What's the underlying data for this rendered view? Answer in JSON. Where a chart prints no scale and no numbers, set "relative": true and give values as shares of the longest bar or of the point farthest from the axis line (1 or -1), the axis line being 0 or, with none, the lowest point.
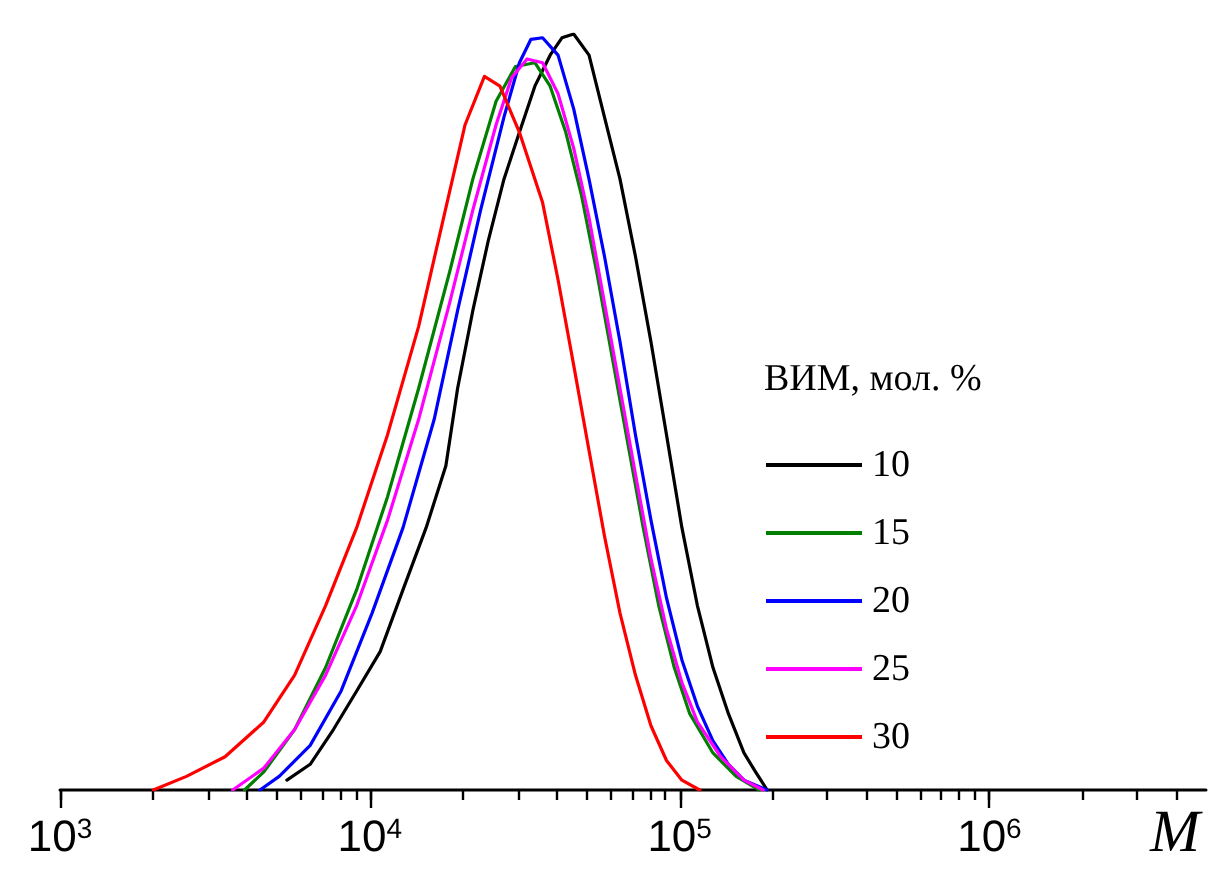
{
  "chart_data": {
    "type": "line",
    "relative": true,
    "xlabel": "M",
    "legend_title": "ВИМ, мол. %",
    "legend": "right",
    "log": "x",
    "grid": false,
    "marker": "none",
    "line_style": "solid",
    "xlim": [
      1000,
      5000000
    ],
    "xticks": [
      {
        "value": 1000,
        "label": "10$^{3}$"
      },
      {
        "value": 2000,
        "label": null
      },
      {
        "value": 3000,
        "label": null
      },
      {
        "value": 4000,
        "label": null
      },
      {
        "value": 5000,
        "label": null
      },
      {
        "value": 6000,
        "label": null
      },
      {
        "value": 7000,
        "label": null
      },
      {
        "value": 8000,
        "label": null
      },
      {
        "value": 9000,
        "label": null
      },
      {
        "value": 10000,
        "label": "10$^{4}$"
      },
      {
        "value": 20000,
        "label": null
      },
      {
        "value": 30000,
        "label": null
      },
      {
        "value": 40000,
        "label": null
      },
      {
        "value": 50000,
        "label": null
      },
      {
        "value": 60000,
        "label": null
      },
      {
        "value": 70000,
        "label": null
      },
      {
        "value": 80000,
        "label": null
      },
      {
        "value": 90000,
        "label": null
      },
      {
        "value": 100000,
        "label": "10$^{5}$"
      },
      {
        "value": 200000,
        "label": null
      },
      {
        "value": 300000,
        "label": null
      },
      {
        "value": 400000,
        "label": null
      },
      {
        "value": 500000,
        "label": null
      },
      {
        "value": 600000,
        "label": null
      },
      {
        "value": 700000,
        "label": null
      },
      {
        "value": 800000,
        "label": null
      },
      {
        "value": 900000,
        "label": null
      },
      {
        "value": 1000000,
        "label": "10$^{6}$"
      },
      {
        "value": 2000000,
        "label": null
      },
      {
        "value": 3000000,
        "label": null
      },
      {
        "value": 4000000,
        "label": null
      }
    ],
    "series": [
      {
        "name": "10",
        "color": "#000000",
        "x": [
          5400,
          6420,
          7630,
          9070,
          10800,
          12800,
          15200,
          17600,
          19200,
          21500,
          24100,
          27100,
          30400,
          34100,
          38200,
          41700,
          45500,
          51000,
          57200,
          64200,
          72000,
          80800,
          90700,
          101700,
          114100,
          128100,
          143700,
          161300,
          175800,
          191700
        ],
        "values": [
          0.013,
          0.034,
          0.08,
          0.131,
          0.183,
          0.265,
          0.347,
          0.429,
          0.531,
          0.634,
          0.726,
          0.808,
          0.87,
          0.931,
          0.972,
          0.995,
          1,
          0.972,
          0.89,
          0.808,
          0.706,
          0.593,
          0.47,
          0.347,
          0.244,
          0.162,
          0.101,
          0.049,
          0.024,
          0
        ]
      },
      {
        "name": "15",
        "color": "#007f00",
        "x": [
          3940,
          4550,
          5720,
          7200,
          9070,
          11410,
          14370,
          18090,
          21500,
          25560,
          29510,
          34100,
          38200,
          42910,
          48140,
          54010,
          60600,
          68000,
          76300,
          85600,
          96100,
          107800,
          128100,
          152200,
          180900
        ],
        "values": [
          0,
          0.024,
          0.08,
          0.162,
          0.265,
          0.388,
          0.531,
          0.685,
          0.808,
          0.911,
          0.957,
          0.962,
          0.931,
          0.87,
          0.788,
          0.685,
          0.572,
          0.459,
          0.347,
          0.244,
          0.162,
          0.101,
          0.049,
          0.018,
          0
        ]
      },
      {
        "name": "20",
        "color": "#0000ff",
        "x": [
          4420,
          5100,
          6420,
          8080,
          10170,
          12800,
          16130,
          19200,
          22780,
          27100,
          30400,
          33110,
          36110,
          40510,
          45500,
          51000,
          57200,
          64200,
          72000,
          80800,
          90700,
          101700,
          114100,
          128100,
          143700,
          161300,
          191700
        ],
        "values": [
          0,
          0.018,
          0.059,
          0.131,
          0.234,
          0.347,
          0.49,
          0.634,
          0.767,
          0.89,
          0.962,
          0.993,
          0.995,
          0.972,
          0.901,
          0.808,
          0.706,
          0.593,
          0.47,
          0.357,
          0.254,
          0.172,
          0.111,
          0.065,
          0.034,
          0.013,
          0
        ]
      },
      {
        "name": "25",
        "color": "#ff00ff",
        "x": [
          3610,
          4550,
          5720,
          7200,
          9070,
          11410,
          14370,
          18090,
          21500,
          25560,
          28680,
          32180,
          36110,
          40510,
          45500,
          51000,
          57200,
          64200,
          72000,
          80800,
          90700,
          101700,
          114100,
          135700,
          161300,
          186200
        ],
        "values": [
          0,
          0.029,
          0.08,
          0.152,
          0.244,
          0.357,
          0.49,
          0.644,
          0.767,
          0.88,
          0.942,
          0.967,
          0.962,
          0.921,
          0.849,
          0.757,
          0.644,
          0.531,
          0.418,
          0.306,
          0.213,
          0.142,
          0.09,
          0.044,
          0.013,
          0
        ]
      },
      {
        "name": "30",
        "color": "#ff0000",
        "x": [
          2000,
          2560,
          3410,
          4550,
          5720,
          7200,
          9070,
          11410,
          14370,
          17080,
          20300,
          23440,
          26300,
          30400,
          36110,
          40510,
          45500,
          51000,
          57200,
          64200,
          72000,
          80800,
          90700,
          101700,
          116100
        ],
        "values": [
          0,
          0.018,
          0.044,
          0.09,
          0.152,
          0.244,
          0.347,
          0.47,
          0.613,
          0.747,
          0.88,
          0.944,
          0.931,
          0.87,
          0.777,
          0.675,
          0.562,
          0.449,
          0.336,
          0.234,
          0.152,
          0.085,
          0.039,
          0.013,
          0
        ]
      }
    ]
  }
}
